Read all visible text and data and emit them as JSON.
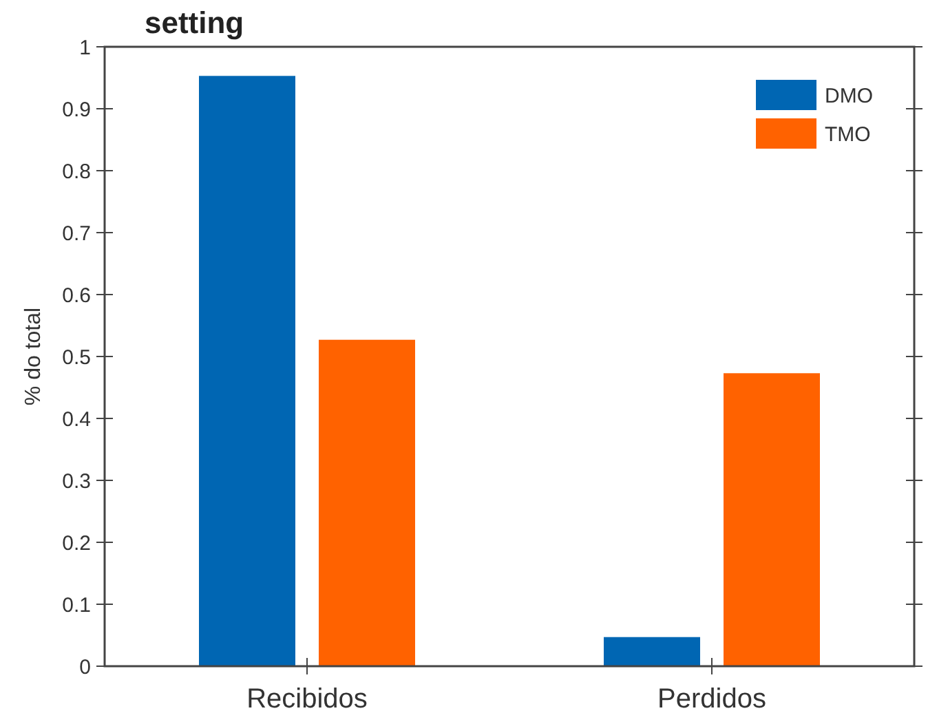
{
  "chart_data": {
    "type": "bar",
    "title": "setting",
    "ylabel": "% do total",
    "categories": [
      "Recibidos",
      "Perdidos"
    ],
    "series": [
      {
        "name": "DMO",
        "color": "#0066b3",
        "values": [
          0.953,
          0.047
        ]
      },
      {
        "name": "TMO",
        "color": "#ff6200",
        "values": [
          0.527,
          0.473
        ]
      }
    ],
    "ylim": [
      0,
      1
    ],
    "yticks": [
      0,
      0.1,
      0.2,
      0.3,
      0.4,
      0.5,
      0.6,
      0.7,
      0.8,
      0.9,
      1
    ],
    "grid": false,
    "legend": "top right"
  }
}
